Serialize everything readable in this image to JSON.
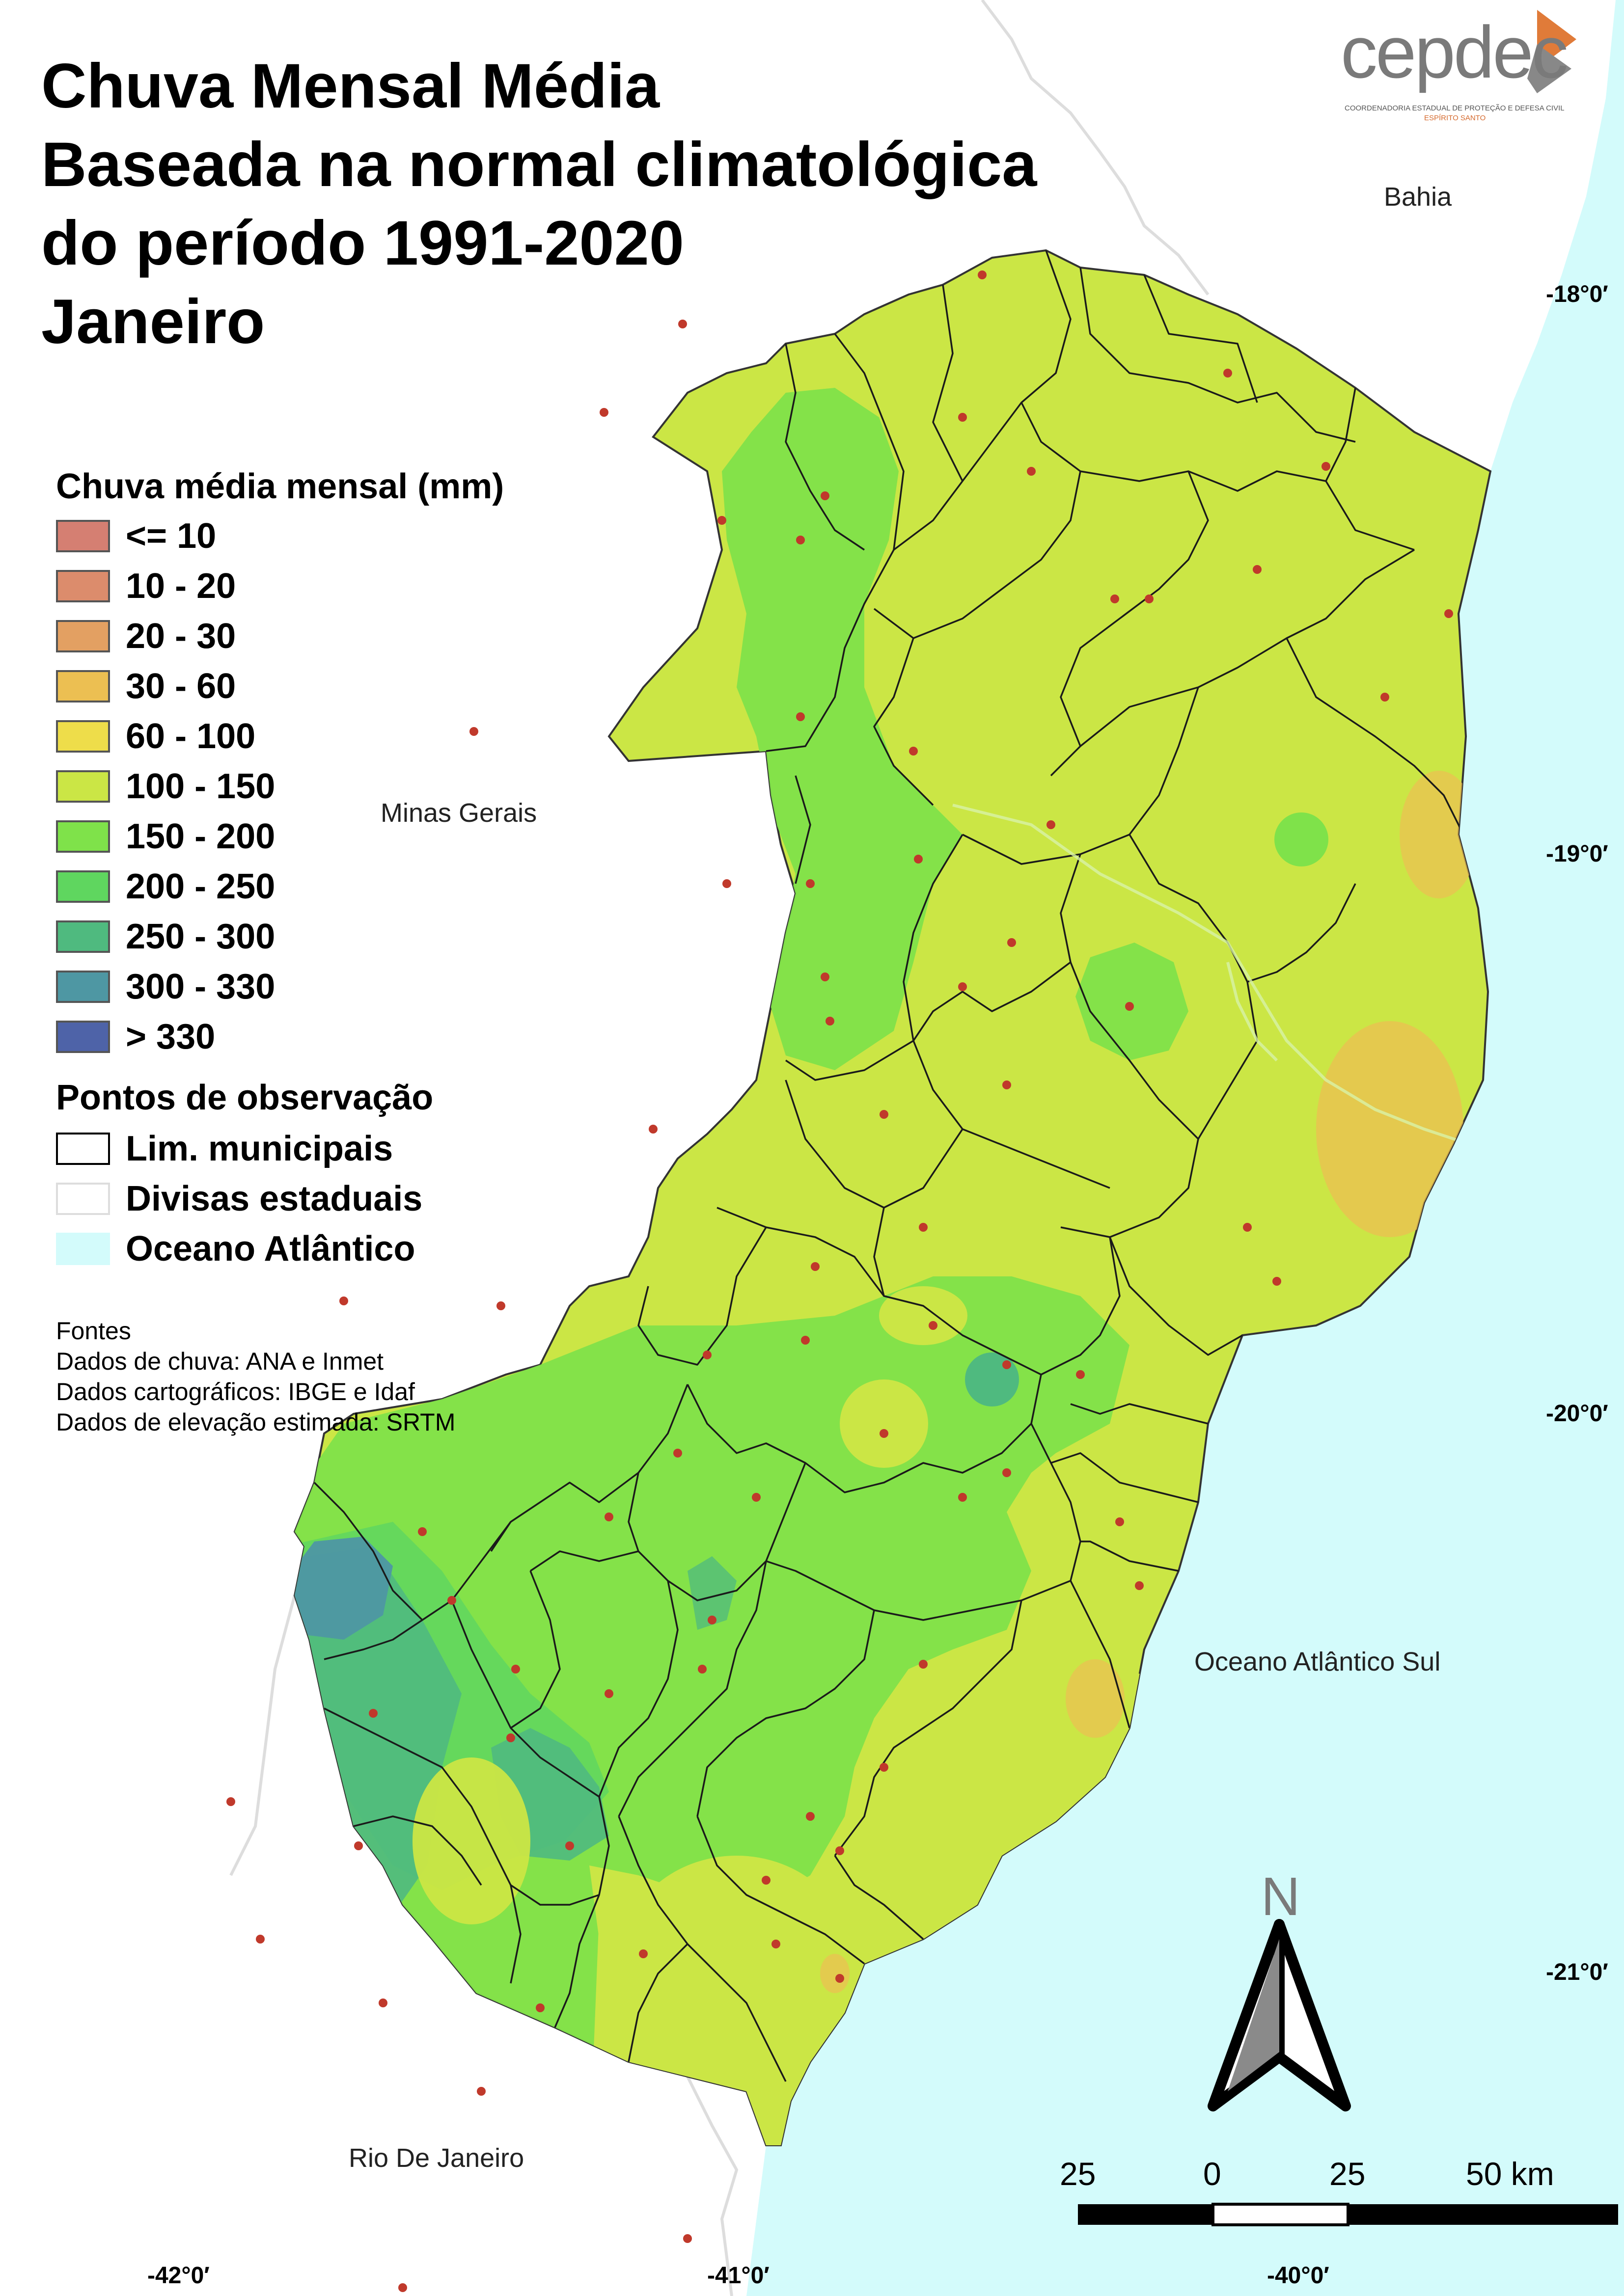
{
  "title": {
    "lines": [
      "Chuva Mensal Média",
      "Baseada na normal climatológica",
      "do período 1991-2020",
      "Janeiro"
    ]
  },
  "legend": {
    "title": "Chuva média mensal (mm)",
    "classes": [
      {
        "label": "<= 10",
        "color": "#d57f72"
      },
      {
        "label": "10 - 20",
        "color": "#dc8c6c"
      },
      {
        "label": "20 - 30",
        "color": "#e3a062"
      },
      {
        "label": "30 - 60",
        "color": "#ecbf52"
      },
      {
        "label": "60 - 100",
        "color": "#eedd4a"
      },
      {
        "label": "100 - 150",
        "color": "#cbe645"
      },
      {
        "label": "150 - 200",
        "color": "#7fe24a"
      },
      {
        "label": "200 - 250",
        "color": "#5fd65f"
      },
      {
        "label": "250 - 300",
        "color": "#4fba7f"
      },
      {
        "label": "300 - 330",
        "color": "#4e97a3"
      },
      {
        "label": "> 330",
        "color": "#4e63a8"
      }
    ],
    "overlay_title": "Pontos de observação",
    "overlays": [
      {
        "label": "Lim. municipais",
        "border": "#000000",
        "fill": "#ffffff"
      },
      {
        "label": "Divisas estaduais",
        "border": "#dddddd",
        "fill": "#ffffff"
      },
      {
        "label": "Oceano Atlântico",
        "border": "#d3fbfb",
        "fill": "#d3fbfb"
      }
    ]
  },
  "sources": {
    "heading": "Fontes",
    "lines": [
      "Dados de chuva: ANA e Inmet",
      "Dados cartográficos: IBGE e Idaf",
      "Dados de elevação estimada: SRTM"
    ]
  },
  "places": {
    "bahia": "Bahia",
    "minas": "Minas Gerais",
    "ocean": "Oceano Atlântico Sul",
    "rio": "Rio De Janeiro"
  },
  "coords": {
    "lat": [
      "-18°0′",
      "-19°0′",
      "-20°0′",
      "-21°0′"
    ],
    "lon": [
      "-42°0′",
      "-41°0′",
      "-40°0′"
    ]
  },
  "north_arrow": {
    "label": "N"
  },
  "scale_bar": {
    "labels": [
      "25",
      "0",
      "25",
      "50 km"
    ]
  },
  "logo": {
    "word": "cepdec",
    "sub": "COORDENADORIA ESTADUAL DE PROTEÇÃO E DEFESA CIVIL",
    "sub2": "ESPÍRITO SANTO"
  },
  "colors": {
    "ocean": "#d3fbfb",
    "state_fill": "#cbe645",
    "observation_point": "#c0392b"
  }
}
